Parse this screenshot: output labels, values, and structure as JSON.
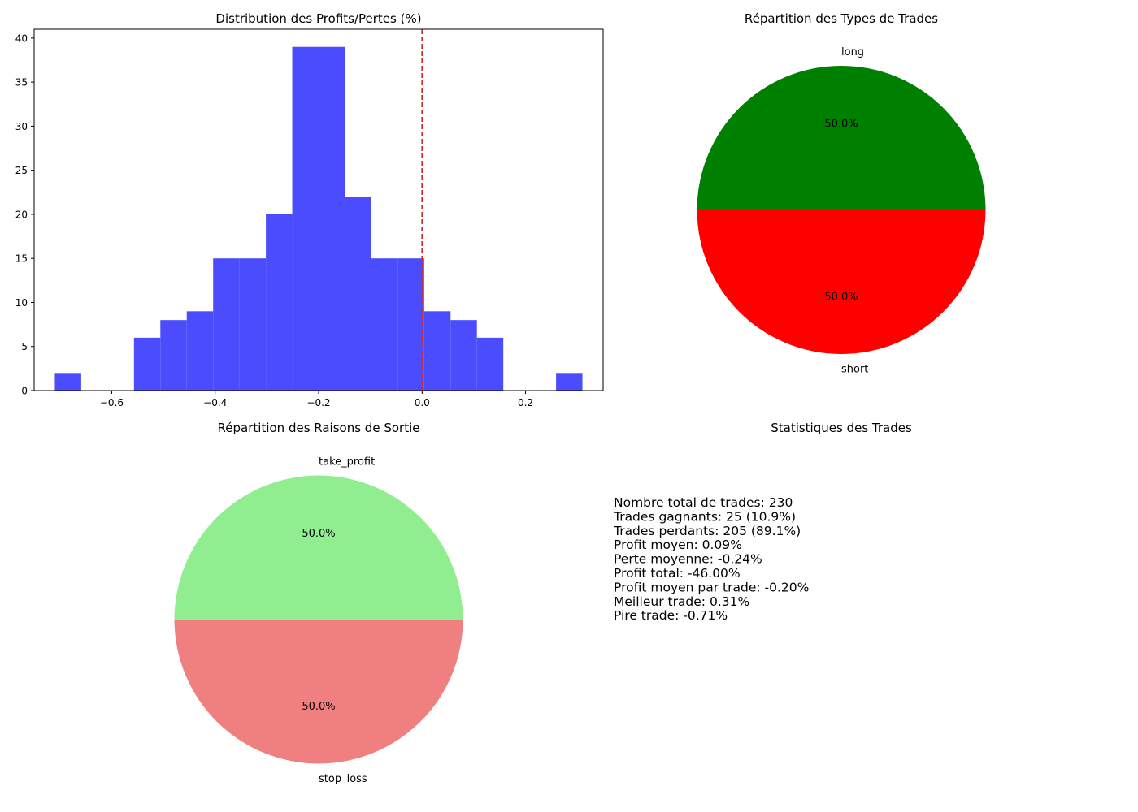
{
  "chart_data": [
    {
      "type": "bar",
      "subtype": "histogram",
      "title": "Distribution des Profits/Pertes (%)",
      "xlabel": "",
      "ylabel": "",
      "xlim": [
        -0.75,
        0.35
      ],
      "ylim": [
        0,
        41
      ],
      "xticks": [
        -0.6,
        -0.4,
        -0.2,
        0.0,
        0.2
      ],
      "xtick_labels": [
        "−0.6",
        "−0.4",
        "−0.2",
        "0.0",
        "0.2"
      ],
      "yticks": [
        0,
        5,
        10,
        15,
        20,
        25,
        30,
        35,
        40
      ],
      "bin_edges": [
        -0.71,
        -0.659,
        -0.608,
        -0.557,
        -0.506,
        -0.455,
        -0.404,
        -0.353,
        -0.302,
        -0.251,
        -0.2,
        -0.149,
        -0.098,
        -0.047,
        0.004,
        0.055,
        0.106,
        0.157,
        0.208,
        0.259,
        0.31
      ],
      "values": [
        2,
        0,
        0,
        6,
        8,
        9,
        15,
        15,
        20,
        39,
        39,
        22,
        15,
        15,
        9,
        8,
        6,
        0,
        0,
        2
      ],
      "color": "#4c4cff",
      "reference_line": {
        "x": 0.0,
        "color": "#d62728",
        "style": "dashed"
      }
    },
    {
      "type": "pie",
      "title": "Répartition des Types de Trades",
      "labels": [
        "long",
        "short"
      ],
      "values": [
        50.0,
        50.0
      ],
      "pct_labels": [
        "50.0%",
        "50.0%"
      ],
      "colors": [
        "#008000",
        "#ff0000"
      ]
    },
    {
      "type": "pie",
      "title": "Répartition des Raisons de Sortie",
      "labels": [
        "take_profit",
        "stop_loss"
      ],
      "values": [
        50.0,
        50.0
      ],
      "pct_labels": [
        "50.0%",
        "50.0%"
      ],
      "colors": [
        "#90ee90",
        "#f08080"
      ]
    },
    {
      "type": "table",
      "title": "Statistiques des Trades",
      "lines": [
        "Nombre total de trades: 230",
        "Trades gagnants: 25 (10.9%)",
        "Trades perdants: 205 (89.1%)",
        "Profit moyen: 0.09%",
        "Perte moyenne: -0.24%",
        "Profit total: -46.00%",
        "Profit moyen par trade: -0.20%",
        "Meilleur trade: 0.31%",
        "Pire trade: -0.71%"
      ]
    }
  ]
}
